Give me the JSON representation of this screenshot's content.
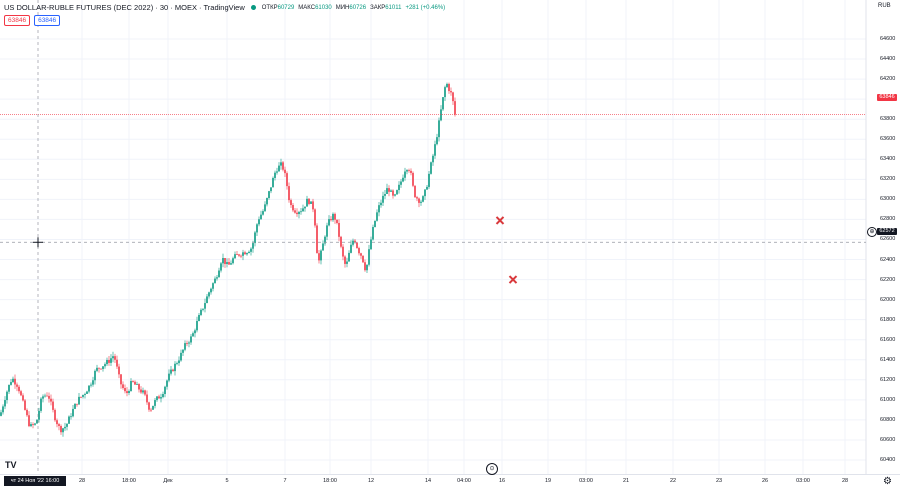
{
  "header": {
    "symbol": "US DOLLAR-RUBLE FUTURES (DEC 2022) · 30 · MOEX · TradingView",
    "open_label": "ОТКР",
    "open_value": "60729",
    "high_label": "МАКС",
    "high_value": "61030",
    "low_label": "МИН",
    "low_value": "60726",
    "close_label": "ЗАКР",
    "close_value": "61011",
    "change": "+281 (+0.46%)"
  },
  "price_boxes": {
    "sell": "63846",
    "buy": "63846"
  },
  "price_axis": {
    "currency": "RUB",
    "labels": [
      "64600",
      "64400",
      "64200",
      "64000",
      "63800",
      "63600",
      "63400",
      "63200",
      "63000",
      "62800",
      "62600",
      "62400",
      "62200",
      "62000",
      "61800",
      "61600",
      "61400",
      "61200",
      "61000",
      "60800",
      "60600",
      "60400"
    ],
    "last_price": "63846",
    "crosshair_price": "62572"
  },
  "time_axis": {
    "crosshair_time": "чт 24 Ноя '22   16:00",
    "labels": [
      "28",
      "18:00",
      "Дек",
      "5",
      "7",
      "18:00",
      "12",
      "14",
      "04:00",
      "16",
      "19",
      "03:00",
      "21",
      "22",
      "23",
      "26",
      "03:00",
      "28"
    ]
  },
  "colors": {
    "up": "#089981",
    "down": "#f23645",
    "marker": "#d9393c",
    "grid": "#f0f3fa",
    "crosshair": "#9598a1"
  },
  "icons": {
    "logo": "tradingview-logo-icon",
    "settings": "gear-icon",
    "goto": "go-to-realtime-icon"
  },
  "chart_data": {
    "type": "candlestick",
    "ylim": [
      60300,
      64700
    ],
    "y_ticks": [
      64600,
      64400,
      64200,
      64000,
      63800,
      63600,
      63400,
      63200,
      63000,
      62800,
      62600,
      62400,
      62200,
      62000,
      61800,
      61600,
      61400,
      61200,
      61000,
      60800,
      60600,
      60400
    ],
    "x_ticks": [
      "28",
      "18:00",
      "Дек",
      "5",
      "7",
      "18:00",
      "12",
      "14",
      "04:00",
      "16",
      "19",
      "03:00",
      "21",
      "22",
      "23",
      "26",
      "03:00",
      "28"
    ],
    "last_price": 63846,
    "crosshair_price": 62572,
    "path": [
      [
        0,
        60840
      ],
      [
        6,
        61060
      ],
      [
        12,
        61220
      ],
      [
        18,
        61140
      ],
      [
        24,
        60930
      ],
      [
        30,
        60730
      ],
      [
        36,
        60760
      ],
      [
        42,
        61030
      ],
      [
        48,
        61060
      ],
      [
        54,
        60850
      ],
      [
        60,
        60700
      ],
      [
        66,
        60740
      ],
      [
        72,
        60880
      ],
      [
        78,
        61000
      ],
      [
        84,
        61060
      ],
      [
        90,
        61150
      ],
      [
        96,
        61300
      ],
      [
        102,
        61340
      ],
      [
        108,
        61380
      ],
      [
        114,
        61450
      ],
      [
        120,
        61180
      ],
      [
        126,
        61050
      ],
      [
        132,
        61180
      ],
      [
        138,
        61120
      ],
      [
        144,
        61060
      ],
      [
        150,
        60900
      ],
      [
        156,
        61000
      ],
      [
        162,
        61060
      ],
      [
        168,
        61220
      ],
      [
        174,
        61330
      ],
      [
        180,
        61430
      ],
      [
        186,
        61560
      ],
      [
        192,
        61630
      ],
      [
        198,
        61800
      ],
      [
        204,
        61950
      ],
      [
        210,
        62100
      ],
      [
        216,
        62220
      ],
      [
        222,
        62420
      ],
      [
        228,
        62330
      ],
      [
        234,
        62420
      ],
      [
        240,
        62460
      ],
      [
        246,
        62480
      ],
      [
        252,
        62520
      ],
      [
        258,
        62800
      ],
      [
        264,
        62900
      ],
      [
        270,
        63100
      ],
      [
        276,
        63300
      ],
      [
        282,
        63350
      ],
      [
        286,
        63200
      ],
      [
        290,
        62950
      ],
      [
        296,
        62880
      ],
      [
        302,
        62900
      ],
      [
        308,
        63000
      ],
      [
        314,
        62900
      ],
      [
        318,
        62350
      ],
      [
        322,
        62500
      ],
      [
        326,
        62700
      ],
      [
        330,
        62800
      ],
      [
        334,
        62850
      ],
      [
        338,
        62700
      ],
      [
        342,
        62450
      ],
      [
        346,
        62320
      ],
      [
        350,
        62500
      ],
      [
        354,
        62620
      ],
      [
        358,
        62500
      ],
      [
        362,
        62430
      ],
      [
        366,
        62280
      ],
      [
        370,
        62550
      ],
      [
        374,
        62750
      ],
      [
        378,
        62900
      ],
      [
        382,
        63000
      ],
      [
        388,
        63120
      ],
      [
        394,
        63000
      ],
      [
        400,
        63150
      ],
      [
        406,
        63330
      ],
      [
        410,
        63300
      ],
      [
        414,
        63060
      ],
      [
        418,
        63000
      ],
      [
        422,
        62980
      ],
      [
        426,
        63100
      ],
      [
        430,
        63300
      ],
      [
        434,
        63480
      ],
      [
        438,
        63700
      ],
      [
        442,
        63950
      ],
      [
        446,
        64170
      ],
      [
        450,
        64080
      ],
      [
        452,
        64030
      ],
      [
        455,
        63846
      ]
    ],
    "markers": [
      [
        500,
        62790
      ],
      [
        513,
        62200
      ]
    ]
  }
}
